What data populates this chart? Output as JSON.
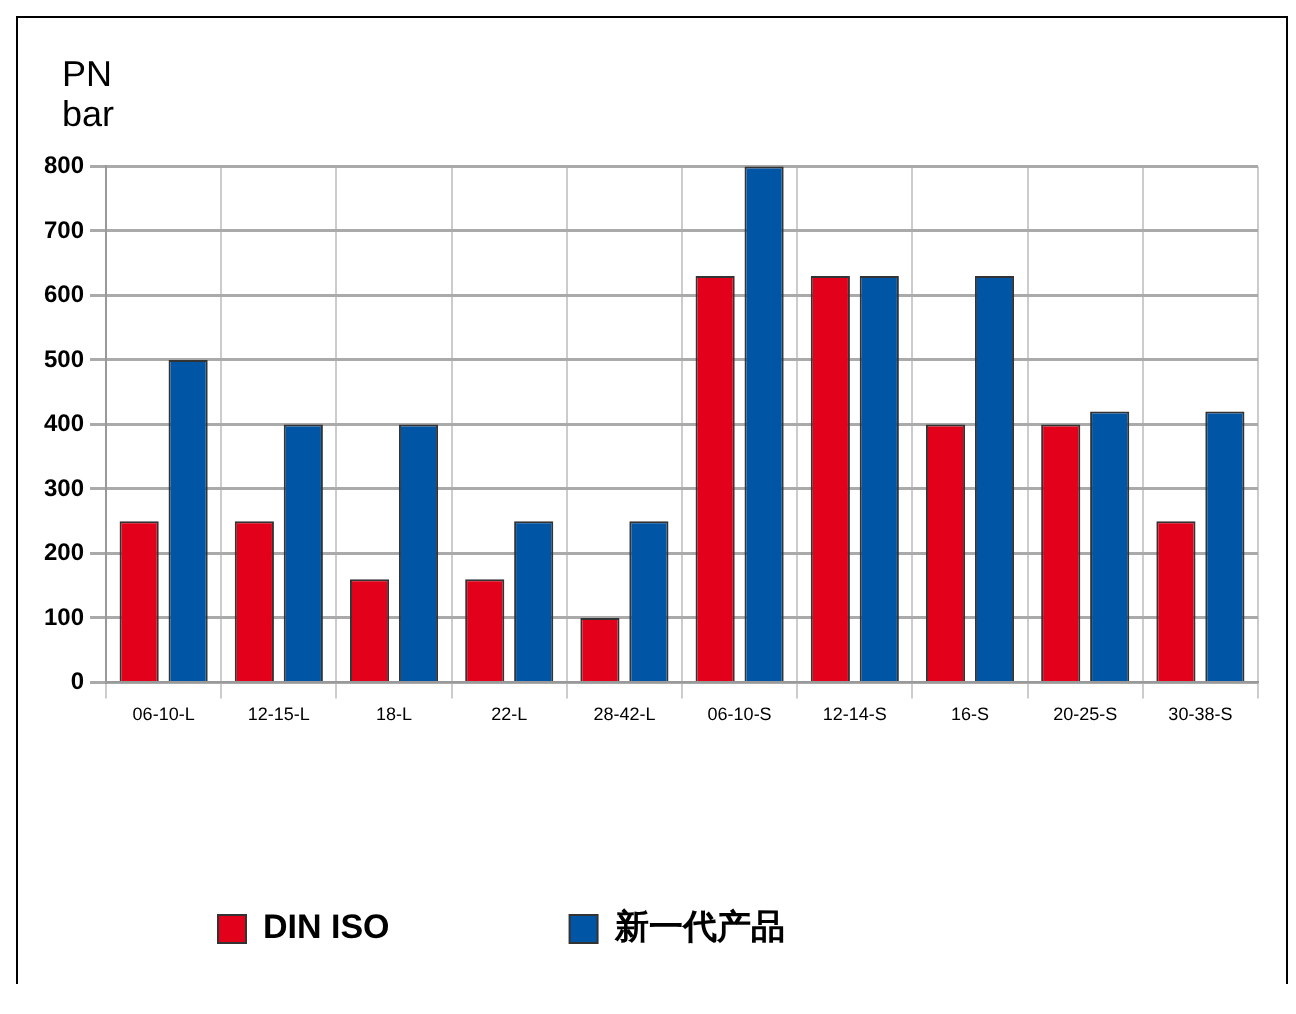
{
  "chart_data": {
    "type": "bar",
    "ylabel": "PN bar",
    "categories": [
      "06-10-L",
      "12-15-L",
      "18-L",
      "22-L",
      "28-42-L",
      "06-10-S",
      "12-14-S",
      "16-S",
      "20-25-S",
      "30-38-S"
    ],
    "series": [
      {
        "name": "DIN ISO",
        "color": "#e3001b",
        "values": [
          250,
          250,
          160,
          160,
          100,
          630,
          630,
          400,
          400,
          250
        ]
      },
      {
        "name": "新一代产品",
        "color": "#0055a5",
        "values": [
          500,
          400,
          400,
          250,
          250,
          800,
          630,
          630,
          420,
          420
        ]
      }
    ],
    "ylim": [
      0,
      800
    ],
    "yticks": [
      0,
      100,
      200,
      300,
      400,
      500,
      600,
      700,
      800
    ],
    "grid": true,
    "legend": "bottom"
  }
}
